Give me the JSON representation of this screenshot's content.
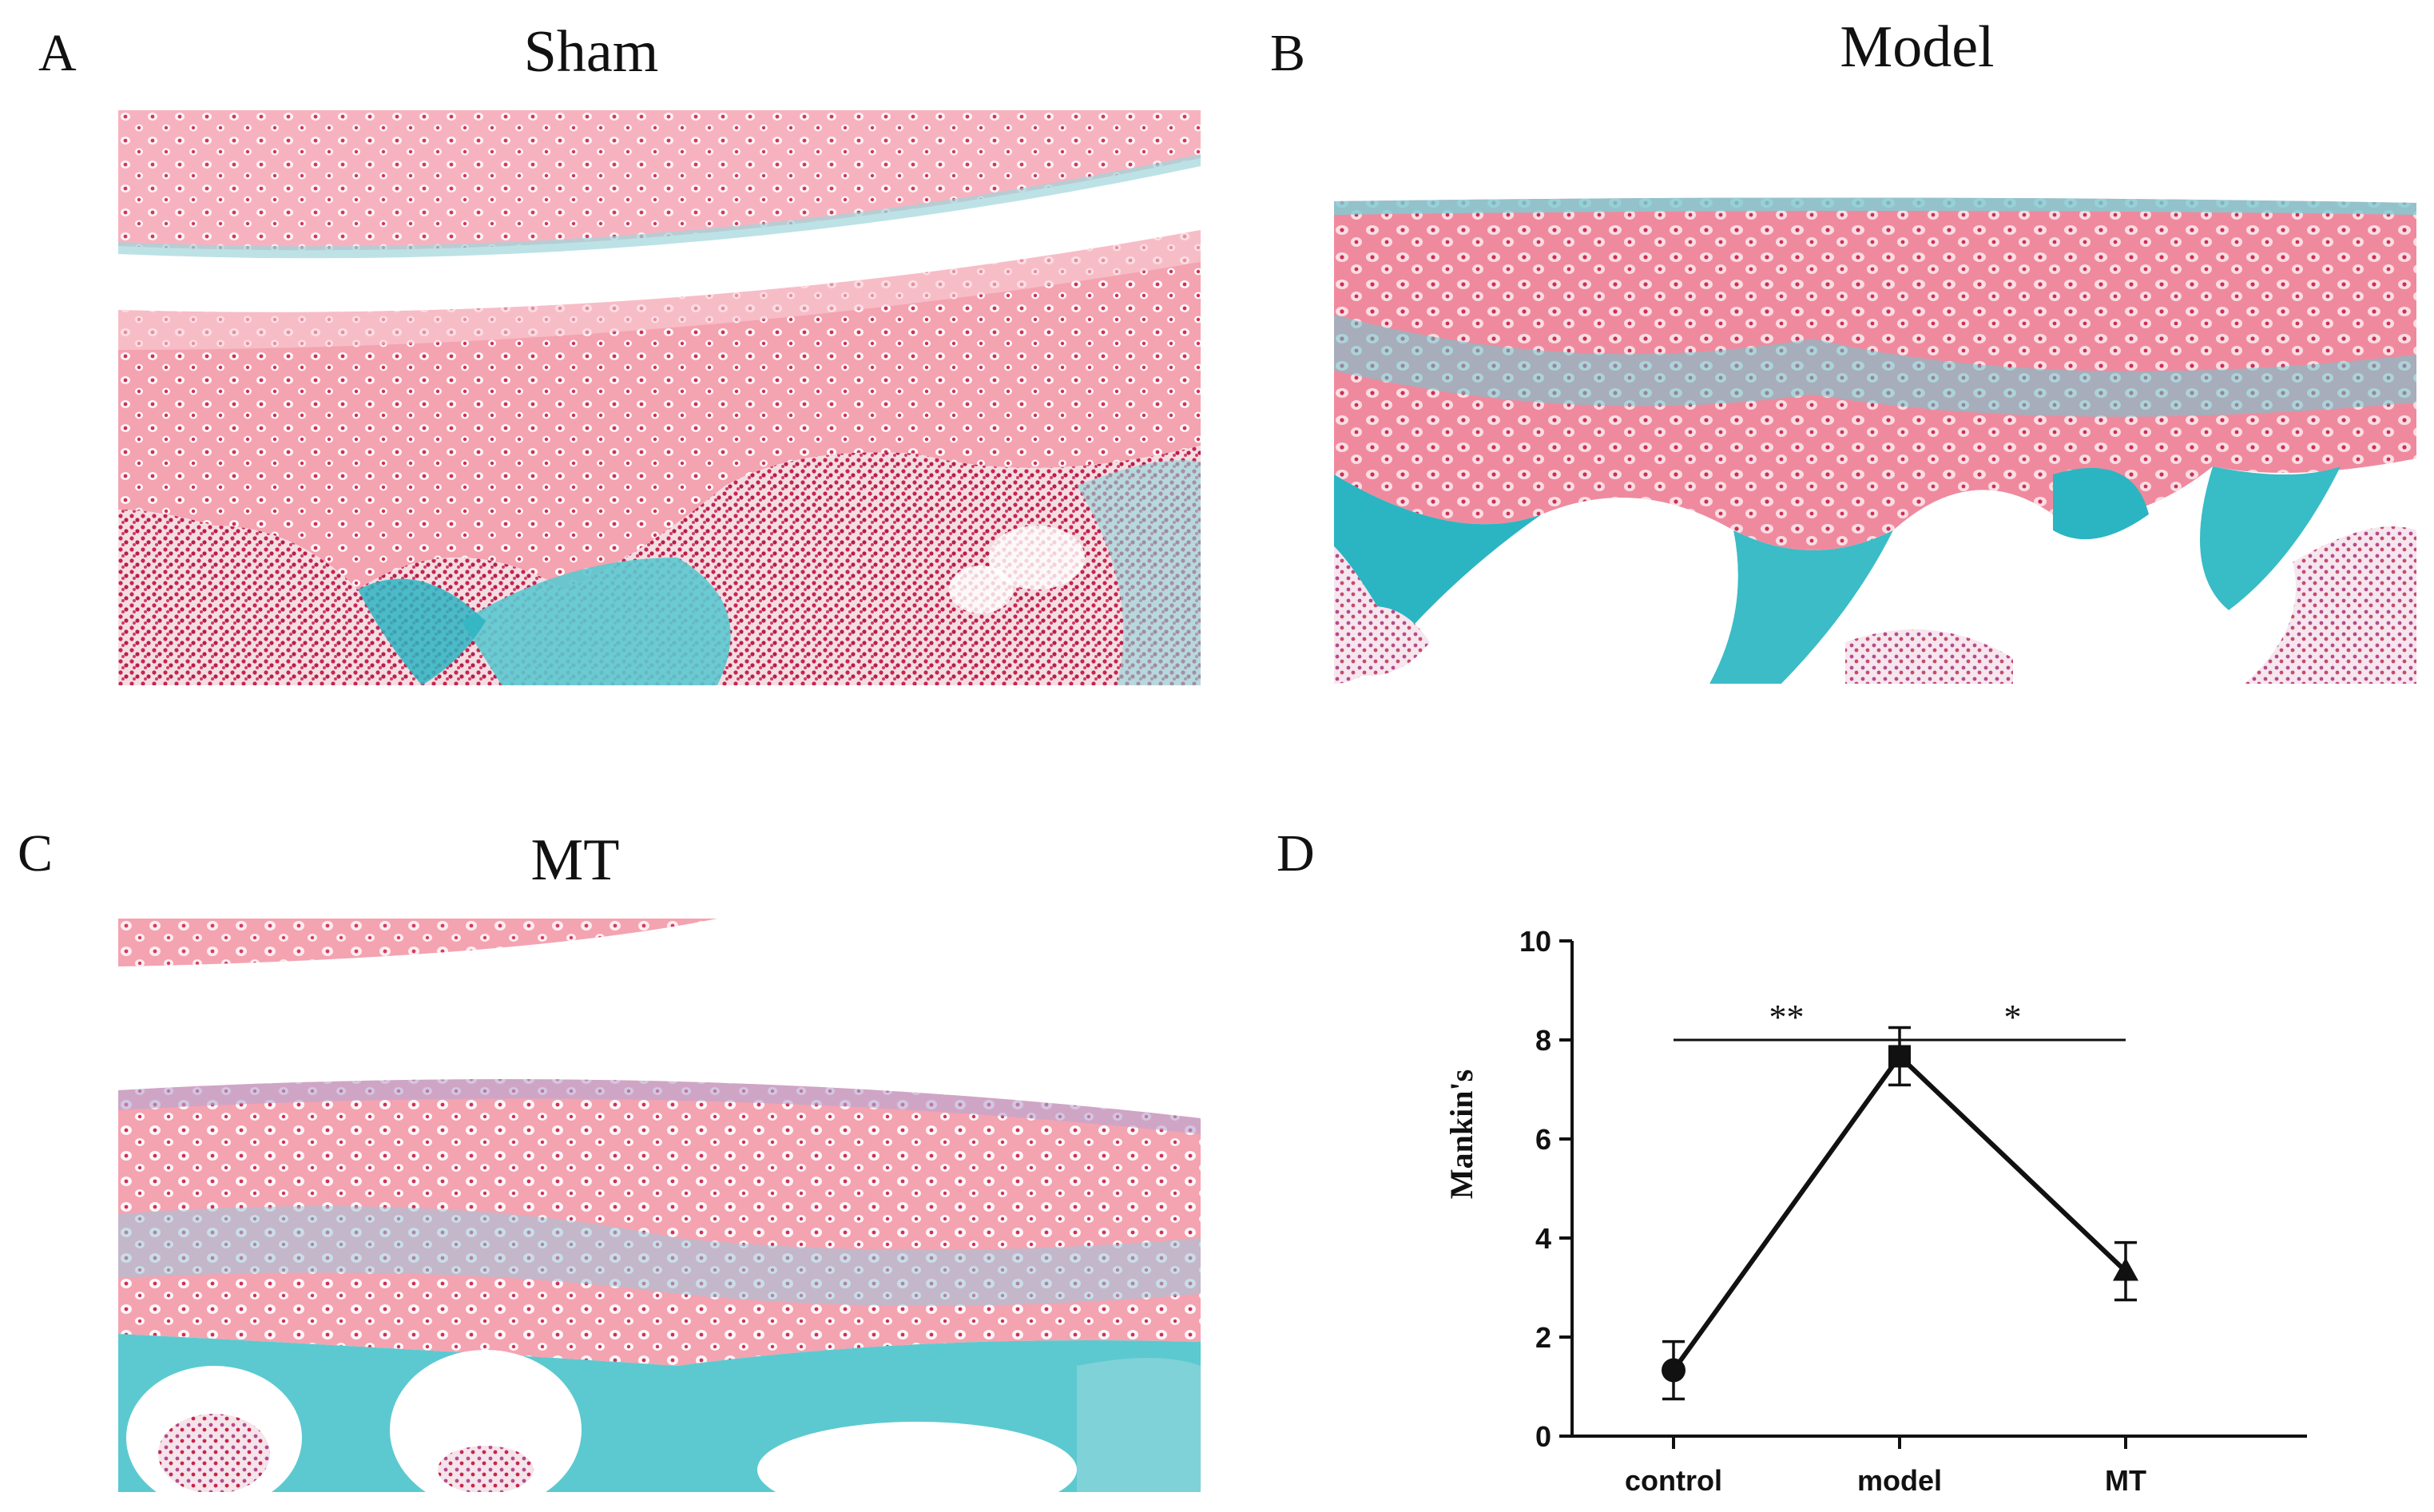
{
  "panels": [
    {
      "letter": "A",
      "title": "Sham"
    },
    {
      "letter": "B",
      "title": "Model"
    },
    {
      "letter": "C",
      "title": "MT"
    },
    {
      "letter": "D",
      "title": ""
    }
  ],
  "colors": {
    "cartilage": "#f4a3b1",
    "cartilage_light": "#f8cfd6",
    "safranin_deep": "#ef7e93",
    "fast_green": "#5cc9d0",
    "fast_green_deep": "#2bb5c2",
    "marrow": "#c8244f",
    "background": "#ffffff"
  },
  "chart_data": {
    "type": "line",
    "categories": [
      "control",
      "model",
      "MT"
    ],
    "values": [
      1.33,
      7.67,
      3.33
    ],
    "error": [
      0.58,
      0.58,
      0.58
    ],
    "markers": [
      "circle",
      "square",
      "triangle"
    ],
    "ylabel": "Mankin's",
    "xlabel": "",
    "ylim": [
      0,
      10
    ],
    "yticks": [
      0,
      2,
      4,
      6,
      8,
      10
    ],
    "significance": [
      {
        "from": "control",
        "to": "model",
        "label": "**",
        "y": 8.0
      },
      {
        "from": "model",
        "to": "MT",
        "label": "*",
        "y": 8.0
      }
    ],
    "grid": false,
    "legend": "none"
  }
}
